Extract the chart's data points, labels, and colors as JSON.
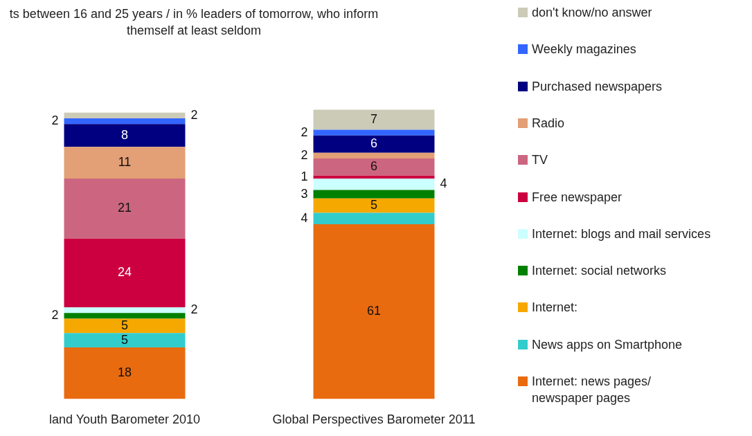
{
  "chart_data": {
    "type": "bar",
    "stacked": true,
    "data_labels": true,
    "legend": "right",
    "title": "ts between 16 and 25 years / in % leaders of tomorrow, who inform themself at least seldom",
    "categories": [
      "land Youth Barometer 2010",
      "Global Perspectives Barometer 2011"
    ],
    "series": [
      {
        "name": "Internet: news pages/ newspaper pages",
        "color": "#e96b10",
        "values": [
          18,
          61
        ]
      },
      {
        "name": "News apps on Smartphone",
        "color": "#33cccc",
        "values": [
          5,
          4
        ]
      },
      {
        "name": "Internet:",
        "color": "#f5a800",
        "values": [
          5,
          5
        ]
      },
      {
        "name": "Internet: social networks",
        "color": "#008000",
        "values": [
          2,
          3
        ]
      },
      {
        "name": "Internet: blogs and mail services",
        "color": "#ccffff",
        "values": [
          2,
          4
        ]
      },
      {
        "name": "Free newspaper",
        "color": "#cc0040",
        "values": [
          24,
          1
        ]
      },
      {
        "name": "TV",
        "color": "#cc6680",
        "values": [
          21,
          6
        ]
      },
      {
        "name": "Radio",
        "color": "#e39f75",
        "values": [
          11,
          2
        ]
      },
      {
        "name": "Purchased newspapers",
        "color": "#000080",
        "values": [
          8,
          6
        ]
      },
      {
        "name": "Weekly magazines",
        "color": "#3366ff",
        "values": [
          2,
          2
        ]
      },
      {
        "name": "don't know/no answer",
        "color": "#cccbb8",
        "values": [
          2,
          7
        ]
      }
    ]
  }
}
